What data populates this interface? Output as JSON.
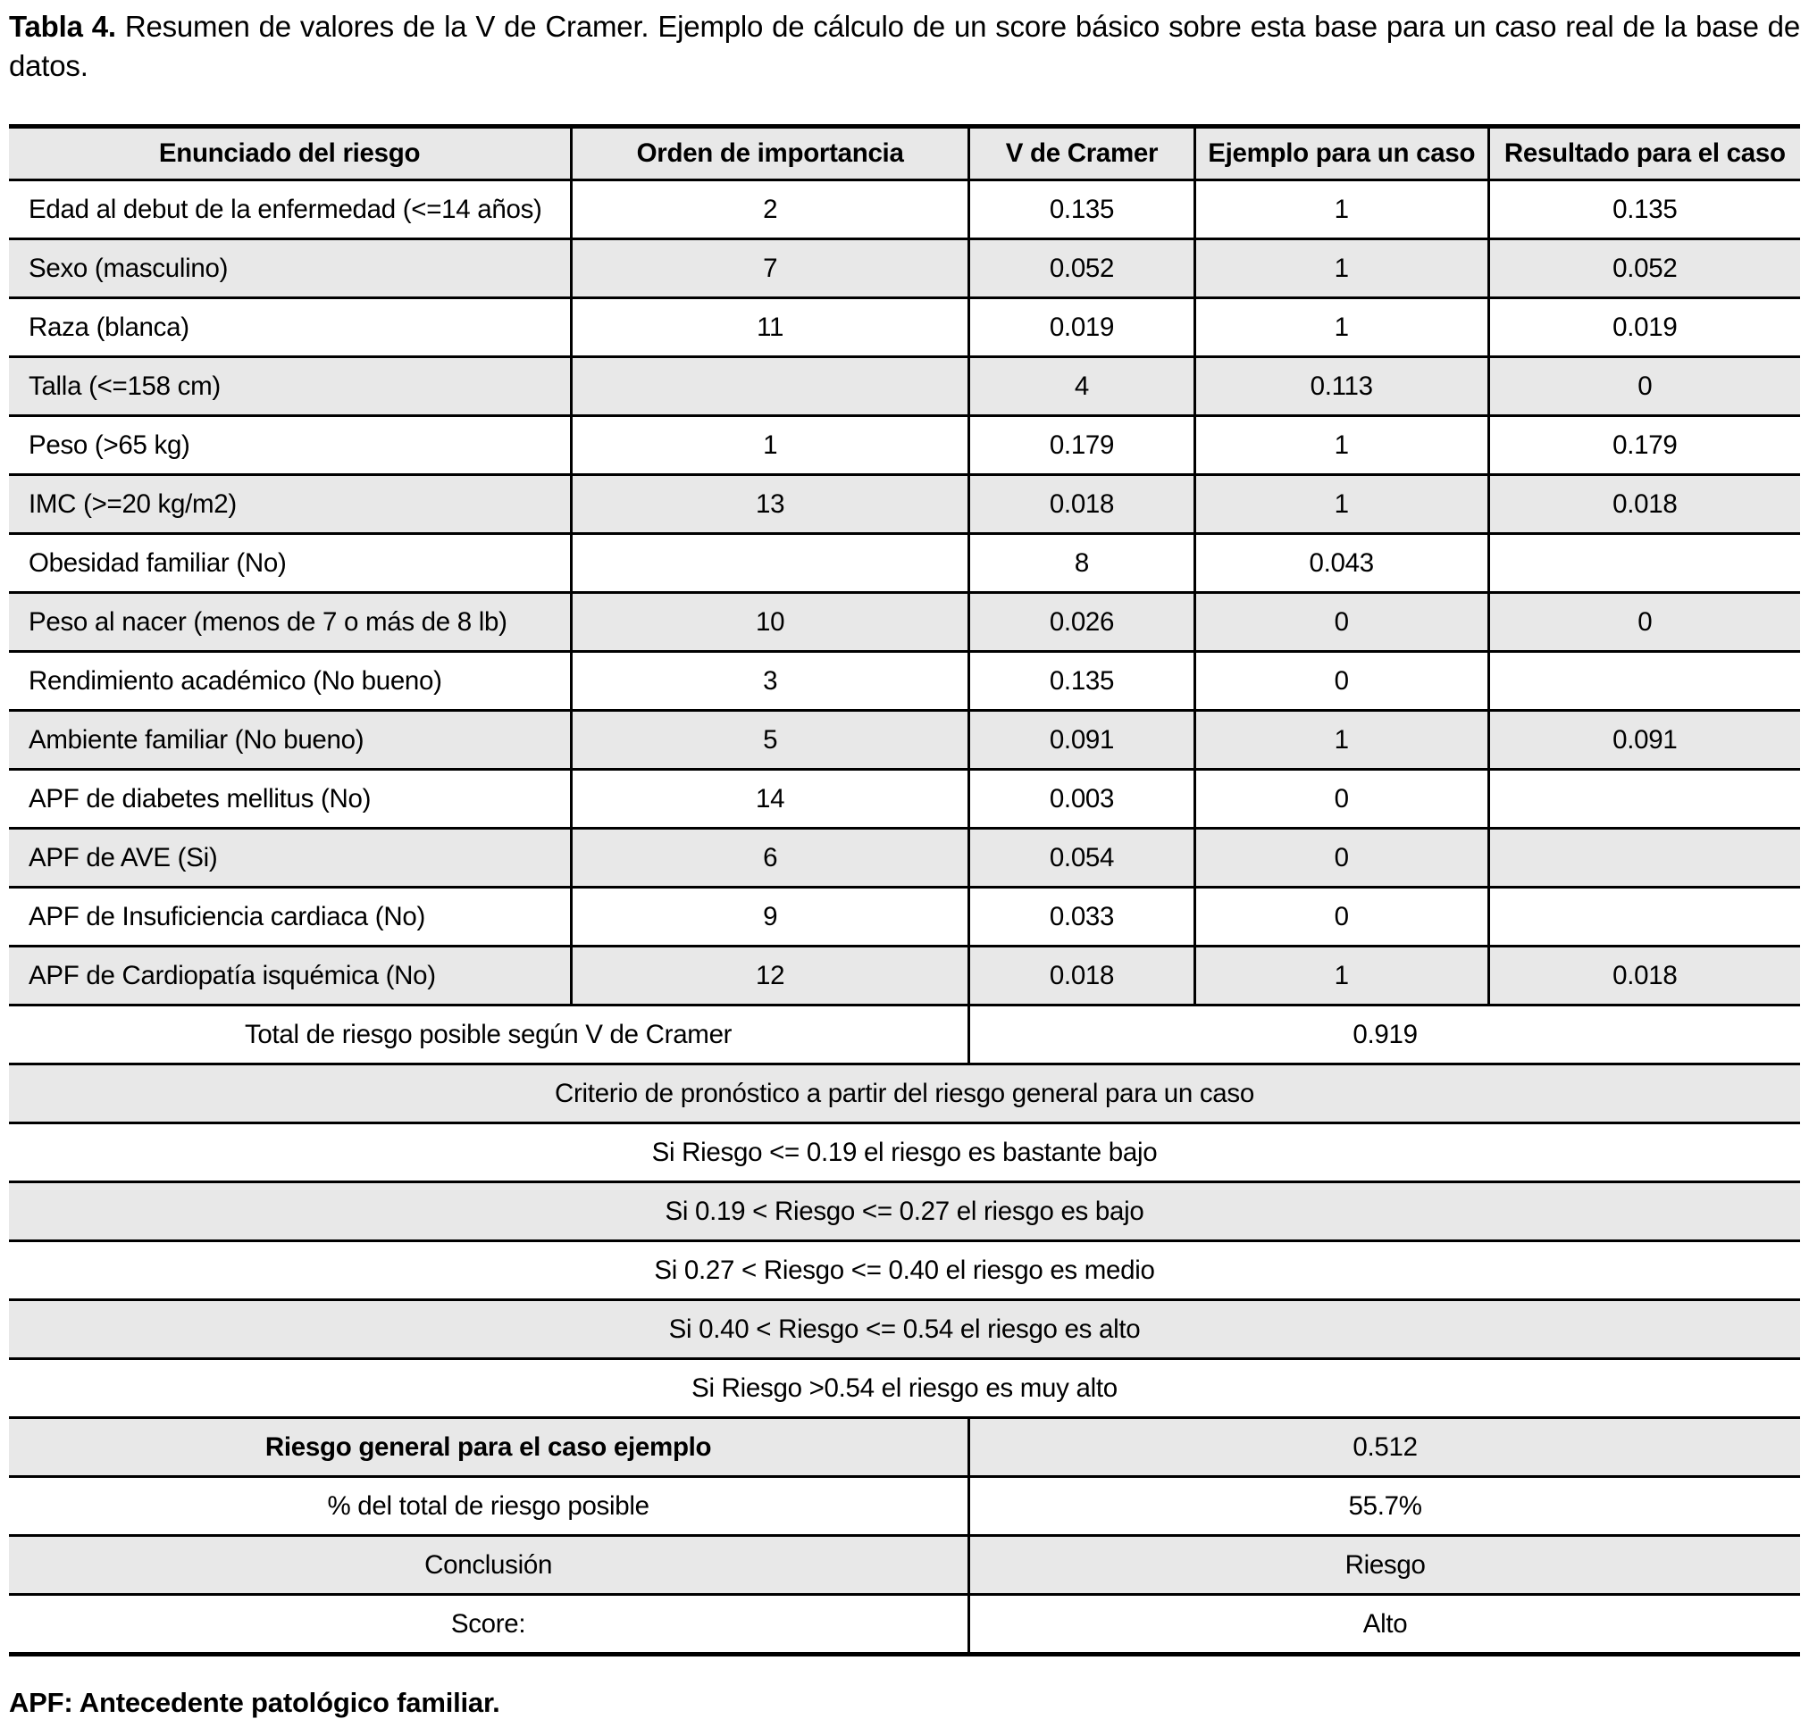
{
  "title": {
    "label": "Tabla 4.",
    "text": " Resumen de valores de la V de Cramer. Ejemplo de cálculo de un score básico sobre esta base para un caso real de la base de datos."
  },
  "table": {
    "headers": [
      "Enunciado del riesgo",
      "Orden de importancia",
      "V de Cramer",
      "Ejemplo para un caso",
      "Resultado para el caso"
    ],
    "rows": [
      {
        "cells": [
          "Edad al debut de la enfermedad (<=14 años)",
          "2",
          "0.135",
          "1",
          "0.135"
        ]
      },
      {
        "cells": [
          "Sexo (masculino)",
          "7",
          "0.052",
          "1",
          "0.052"
        ]
      },
      {
        "cells": [
          "Raza (blanca)",
          "11",
          "0.019",
          "1",
          "0.019"
        ]
      },
      {
        "cells": [
          "Talla (<=158 cm)",
          "",
          "4",
          "0.113",
          "0"
        ]
      },
      {
        "cells": [
          "Peso (>65 kg)",
          "1",
          "0.179",
          "1",
          "0.179"
        ]
      },
      {
        "cells": [
          "IMC (>=20 kg/m2)",
          "13",
          "0.018",
          "1",
          "0.018"
        ]
      },
      {
        "cells": [
          "Obesidad familiar (No)",
          "",
          "8",
          "0.043",
          ""
        ]
      },
      {
        "cells": [
          "Peso al nacer (menos de 7 o más de 8 lb)",
          "10",
          "0.026",
          "0",
          "0"
        ]
      },
      {
        "cells": [
          "Rendimiento académico (No bueno)",
          "3",
          "0.135",
          "0",
          ""
        ]
      },
      {
        "cells": [
          "Ambiente familiar (No bueno)",
          "5",
          "0.091",
          "1",
          "0.091"
        ]
      },
      {
        "cells": [
          "APF de diabetes mellitus (No)",
          "14",
          "0.003",
          "0",
          ""
        ]
      },
      {
        "cells": [
          "APF de AVE (Si)",
          "6",
          "0.054",
          "0",
          ""
        ]
      },
      {
        "cells": [
          "APF de Insuficiencia cardiaca (No)",
          "9",
          "0.033",
          "0",
          ""
        ]
      },
      {
        "cells": [
          "APF de Cardiopatía isquémica (No)",
          "12",
          "0.018",
          "1",
          "0.018"
        ]
      }
    ],
    "total_row": {
      "label": "Total de riesgo posible según V de Cramer",
      "value": "0.919"
    },
    "criteria": [
      "Criterio de pronóstico a partir del riesgo general para un caso",
      "Si Riesgo <= 0.19 el riesgo es bastante bajo",
      "Si 0.19 < Riesgo <= 0.27 el riesgo es bajo",
      "Si 0.27 < Riesgo <= 0.40 el riesgo es medio",
      "Si 0.40 < Riesgo <= 0.54 el riesgo es alto",
      "Si Riesgo >0.54 el riesgo es muy alto"
    ],
    "summary_rows": [
      {
        "label": "Riesgo general para el caso ejemplo",
        "value": "0.512"
      },
      {
        "label": "% del total de riesgo posible",
        "value": "55.7%"
      },
      {
        "label": "Conclusión",
        "value": "Riesgo"
      },
      {
        "label": "Score:",
        "value": "Alto"
      }
    ]
  },
  "footnote": "APF: Antecedente patológico familiar.",
  "colors": {
    "stripe": "#e8e8e8",
    "border": "#000000",
    "text": "#000000"
  }
}
